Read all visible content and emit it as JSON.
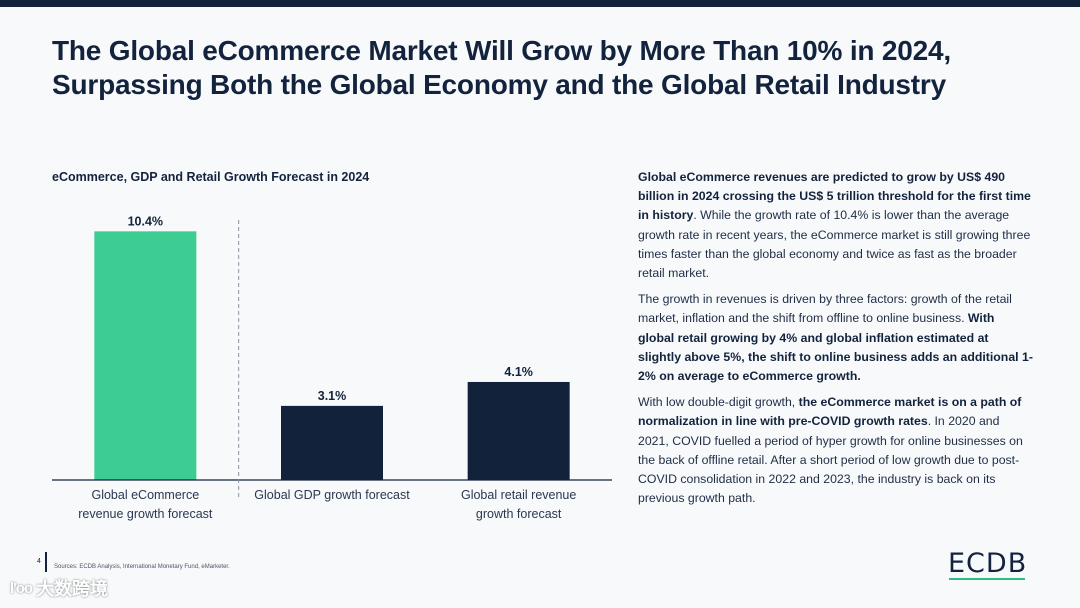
{
  "header": {
    "title_line1": "The Global eCommerce Market Will Grow by More Than 10% in 2024,",
    "title_line2": "Surpassing Both the Global Economy and the Global Retail Industry"
  },
  "chart_data": {
    "type": "bar",
    "title": "eCommerce, GDP and Retail Growth Forecast in 2024",
    "categories": [
      [
        "Global eCommerce",
        "revenue growth forecast"
      ],
      [
        "Global GDP growth forecast"
      ],
      [
        "Global retail revenue",
        "growth forecast"
      ]
    ],
    "values": [
      10.4,
      3.1,
      4.1
    ],
    "value_labels": [
      "10.4%",
      "3.1%",
      "4.1%"
    ],
    "colors": [
      "#3dcc92",
      "#12223a",
      "#12223a"
    ],
    "ylim": [
      0,
      11
    ],
    "xlabel": "",
    "ylabel": "",
    "grid": false,
    "divider_after_category": 0
  },
  "text": {
    "p1_bold": "Global eCommerce revenues are predicted to grow by US$ 490 billion in 2024 crossing the US$ 5 trillion threshold for the first time in history",
    "p1_rest": ". While the growth rate of 10.4% is lower than the average growth rate in recent years, the eCommerce market is still growing three times faster than the global economy and twice as fast as the broader retail market.",
    "p2_plain": "The growth in revenues is driven by three factors: growth of the retail market, inflation and the shift from offline to online business. ",
    "p2_bold": "With global retail growing by 4% and global inflation estimated at slightly above 5%, the shift to online business adds an additional 1-2% on average to eCommerce growth.",
    "p3_plain1": "With low double-digit growth, ",
    "p3_bold": "the eCommerce market is on a path of normalization in line with pre-COVID growth rates",
    "p3_plain2": ". In 2020 and 2021, COVID fuelled a period of hyper growth for online businesses on the back of offline retail. After a short period of low growth due to post-COVID consolidation in 2022 and 2023, the industry is back on its previous growth path."
  },
  "footer": {
    "page_number": "4",
    "sources": "Sources:    ECDB Analysis, International Monetary Fund, eMarketer.",
    "logo": "ECDB",
    "watermark_icon": "l'oo",
    "watermark": "大数跨境"
  },
  "colors": {
    "navy": "#12223a",
    "green": "#3dcc92",
    "background": "#f7f9fb"
  }
}
